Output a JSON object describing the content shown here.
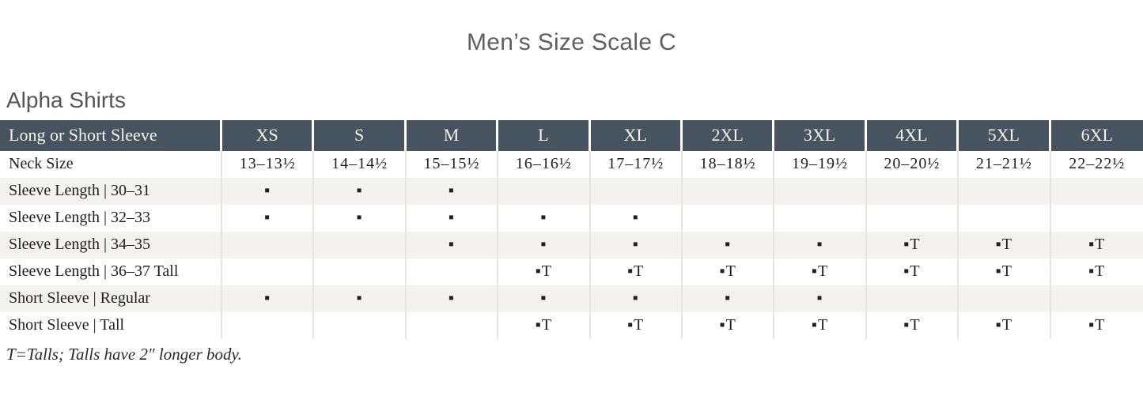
{
  "page": {
    "title": "Men’s Size Scale C",
    "section_heading": "Alpha Shirts",
    "footnote": "T=Talls; Talls have 2″ longer body."
  },
  "colors": {
    "header_bg": "#47545f",
    "header_text": "#f3f2ee",
    "stripe_row_bg": "#f4f2ef",
    "grid_line": "#e7e5e1",
    "heading_gray": "#5a5a5a"
  },
  "marks": {
    "available": "▪",
    "available_tall": "▪T"
  },
  "table": {
    "corner_label": "Long or Short Sleeve",
    "sizes": [
      "XS",
      "S",
      "M",
      "L",
      "XL",
      "2XL",
      "3XL",
      "4XL",
      "5XL",
      "6XL"
    ],
    "rows": [
      {
        "label": "Neck Size",
        "cells": [
          "13–13½",
          "14–14½",
          "15–15½",
          "16–16½",
          "17–17½",
          "18–18½",
          "19–19½",
          "20–20½",
          "21–21½",
          "22–22½"
        ]
      },
      {
        "label": "Sleeve Length  |  30–31",
        "cells": [
          "▪",
          "▪",
          "▪",
          "",
          "",
          "",
          "",
          "",
          "",
          ""
        ]
      },
      {
        "label": "Sleeve Length  |  32–33",
        "cells": [
          "▪",
          "▪",
          "▪",
          "▪",
          "▪",
          "",
          "",
          "",
          "",
          ""
        ]
      },
      {
        "label": "Sleeve Length  |  34–35",
        "cells": [
          "",
          "",
          "▪",
          "▪",
          "▪",
          "▪",
          "▪",
          "▪T",
          "▪T",
          "▪T"
        ]
      },
      {
        "label": "Sleeve Length  |  36–37 Tall",
        "cells": [
          "",
          "",
          "",
          "▪T",
          "▪T",
          "▪T",
          "▪T",
          "▪T",
          "▪T",
          "▪T"
        ]
      },
      {
        "label": "Short Sleeve  |  Regular",
        "cells": [
          "▪",
          "▪",
          "▪",
          "▪",
          "▪",
          "▪",
          "▪",
          "",
          "",
          ""
        ]
      },
      {
        "label": "Short Sleeve  |  Tall",
        "cells": [
          "",
          "",
          "",
          "▪T",
          "▪T",
          "▪T",
          "▪T",
          "▪T",
          "▪T",
          "▪T"
        ]
      }
    ]
  }
}
